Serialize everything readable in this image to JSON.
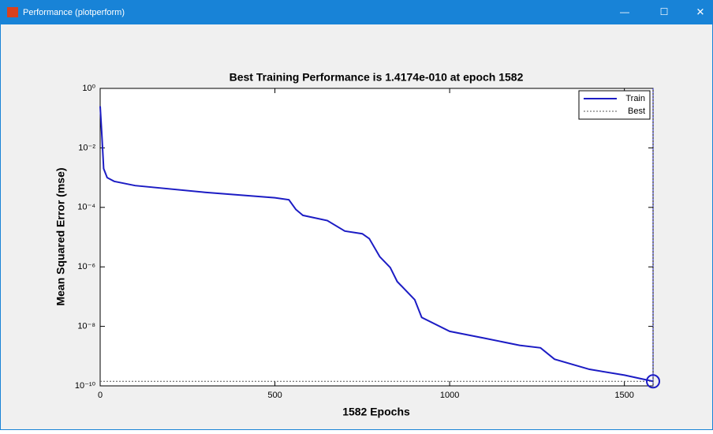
{
  "window": {
    "title": "Performance (plotperform)",
    "buttons": [
      "—",
      "☐",
      "✕"
    ]
  },
  "chart_data": {
    "type": "line",
    "title": "Best Training Performance is 1.4174e-010 at epoch 1582",
    "xlabel": "1582 Epochs",
    "ylabel": "Mean Squared Error  (mse)",
    "log_y": true,
    "xlim": [
      0,
      1582
    ],
    "ylim": [
      1e-10,
      1
    ],
    "xticks": [
      0,
      500,
      1000,
      1500
    ],
    "yticks": [
      {
        "value": 1,
        "label": "10⁰"
      },
      {
        "value": 0.01,
        "label": "10⁻²"
      },
      {
        "value": 0.0001,
        "label": "10⁻⁴"
      },
      {
        "value": 1e-06,
        "label": "10⁻⁶"
      },
      {
        "value": 1e-08,
        "label": "10⁻⁸"
      },
      {
        "value": 1e-10,
        "label": "10⁻¹⁰"
      }
    ],
    "legend": "top-right",
    "series": [
      {
        "name": "Train",
        "color": "#1c1cc4",
        "x": [
          0,
          5,
          10,
          20,
          40,
          100,
          300,
          500,
          540,
          560,
          580,
          650,
          700,
          750,
          770,
          800,
          830,
          850,
          900,
          920,
          1000,
          1100,
          1200,
          1260,
          1300,
          1400,
          1500,
          1582
        ],
        "values": [
          0.25,
          0.025,
          0.002,
          0.001,
          0.00075,
          0.00054,
          0.00032,
          0.00021,
          0.00018,
          8.5e-05,
          5.4e-05,
          3.6e-05,
          1.6e-05,
          1.3e-05,
          8.9e-06,
          2.2e-06,
          9.5e-07,
          3.2e-07,
          7.9e-08,
          2e-08,
          6.8e-09,
          4e-09,
          2.3e-09,
          1.9e-09,
          7.9e-10,
          3.6e-10,
          2.3e-10,
          1.4174e-10
        ]
      }
    ],
    "best": {
      "name": "Best",
      "epoch": 1582,
      "value": 1.4174e-10,
      "color": "#1c1cc4"
    }
  }
}
